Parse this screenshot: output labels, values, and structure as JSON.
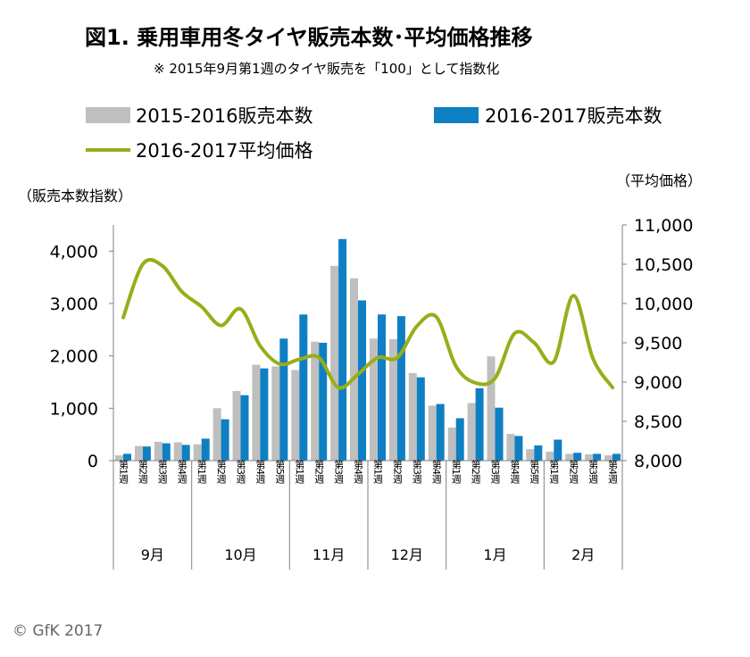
{
  "chart_data": {
    "type": "bar",
    "title": "図1. 乗用車用冬タイヤ販売本数･平均価格推移",
    "subtitle": "※ 2015年9月第1週のタイヤ販売を「100」として指数化",
    "left_axis_title": "（販売本数指数）",
    "right_axis_title": "（平均価格）",
    "left_ylim": [
      0,
      4500
    ],
    "left_ticks": [
      "0",
      "1,000",
      "2,000",
      "3,000",
      "4,000"
    ],
    "right_ylim": [
      8000,
      11000
    ],
    "right_ticks": [
      "8,000",
      "8,500",
      "9,000",
      "9,500",
      "10,000",
      "10,500",
      "11,000"
    ],
    "categories": [
      "第1週",
      "第2週",
      "第3週",
      "第4週",
      "第1週",
      "第2週",
      "第3週",
      "第4週",
      "第5週",
      "第1週",
      "第2週",
      "第3週",
      "第4週",
      "第1週",
      "第2週",
      "第3週",
      "第4週",
      "第1週",
      "第2週",
      "第3週",
      "第4週",
      "第5週",
      "第1週",
      "第2週",
      "第3週",
      "第4週"
    ],
    "months": [
      {
        "label": "9月",
        "weeks": 4
      },
      {
        "label": "10月",
        "weeks": 5
      },
      {
        "label": "11月",
        "weeks": 4
      },
      {
        "label": "12月",
        "weeks": 4
      },
      {
        "label": "1月",
        "weeks": 5
      },
      {
        "label": "2月",
        "weeks": 4
      }
    ],
    "series": [
      {
        "name": "2015-2016販売本数",
        "type": "bar",
        "axis": "left",
        "color": "#bfbfbf",
        "values": [
          100,
          280,
          360,
          350,
          310,
          1000,
          1330,
          1830,
          1800,
          1730,
          2270,
          3720,
          3480,
          2330,
          2320,
          1670,
          1050,
          630,
          1100,
          1990,
          510,
          220,
          170,
          130,
          120,
          100
        ]
      },
      {
        "name": "2016-2017販売本数",
        "type": "bar",
        "axis": "left",
        "color": "#0f7fc4",
        "values": [
          130,
          270,
          330,
          300,
          420,
          790,
          1250,
          1760,
          2330,
          2790,
          2250,
          4230,
          3060,
          2790,
          2760,
          1590,
          1080,
          810,
          1380,
          1010,
          470,
          290,
          400,
          150,
          130,
          130
        ]
      },
      {
        "name": "2016-2017平均価格",
        "type": "line",
        "axis": "right",
        "color": "#99ad19",
        "values": [
          9820,
          10500,
          10480,
          10150,
          9960,
          9720,
          9930,
          9460,
          9230,
          9290,
          9310,
          8930,
          9100,
          9310,
          9310,
          9710,
          9830,
          9200,
          8990,
          9050,
          9620,
          9500,
          9260,
          10100,
          9300,
          8930
        ]
      }
    ]
  },
  "copyright": "© GfK 2017"
}
